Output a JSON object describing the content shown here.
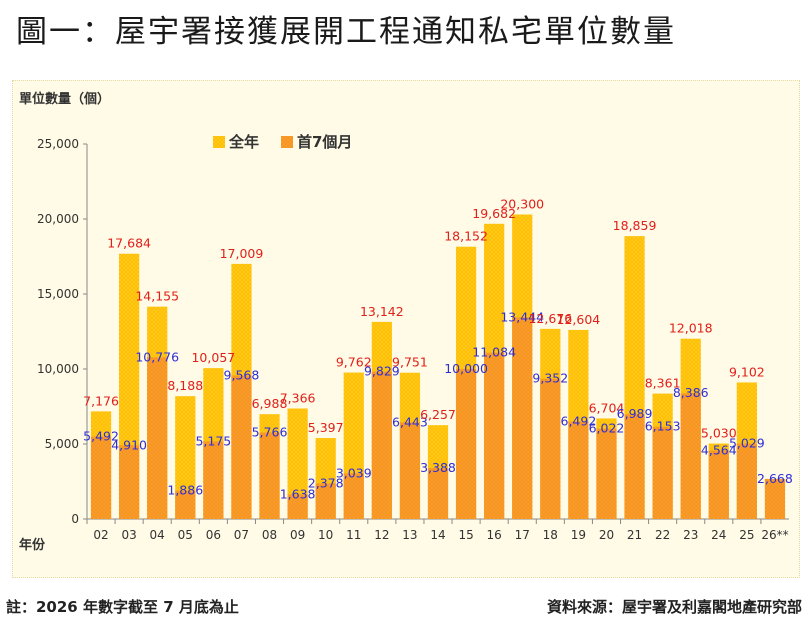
{
  "page_title": "圖一：屋宇署接獲展開工程通知私宅單位數量",
  "footnote": "註：2026 年數字截至 7 月底為止",
  "source": "資料來源：屋宇署及利嘉閣地產研究部",
  "colors": {
    "full_year": "#ffc000",
    "first_7_months": "#f7941d",
    "full_year_label": "#e0201b",
    "first_7_label": "#2e2ed6",
    "axis_text": "#333333"
  },
  "chart_data": {
    "type": "bar",
    "ylabel": "單位數量（個）",
    "xlabel": "年份",
    "ylim": [
      0,
      25000
    ],
    "yticks": [
      "0",
      "5,000",
      "10,000",
      "15,000",
      "20,000",
      "25,000"
    ],
    "ytick_values": [
      0,
      5000,
      10000,
      15000,
      20000,
      25000
    ],
    "legend_position": "top-left",
    "grid": false,
    "categories": [
      "02",
      "03",
      "04",
      "05",
      "06",
      "07",
      "08",
      "09",
      "10",
      "11",
      "12",
      "13",
      "14",
      "15",
      "16",
      "17",
      "18",
      "19",
      "20",
      "21",
      "22",
      "23",
      "24",
      "25",
      "26**"
    ],
    "series": [
      {
        "name": "全年",
        "values": [
          7176,
          17684,
          14155,
          8188,
          10057,
          17009,
          6988,
          7366,
          5397,
          9762,
          13142,
          9751,
          6257,
          18152,
          19682,
          20300,
          12676,
          12604,
          6704,
          18859,
          8361,
          12018,
          5030,
          9102,
          null
        ],
        "labels": [
          "7,176",
          "17,684",
          "14,155",
          "8,188",
          "10,057",
          "17,009",
          "6,988",
          "7,366",
          "5,397",
          "9,762",
          "13,142",
          "9,751",
          "6,257",
          "18,152",
          "19,682",
          "20,300",
          "12,676",
          "12,604",
          "6,704",
          "18,859",
          "8,361",
          "12,018",
          "5,030",
          "9,102",
          ""
        ]
      },
      {
        "name": "首7個月",
        "values": [
          5492,
          4910,
          10776,
          1886,
          5175,
          9568,
          5766,
          1638,
          2378,
          3039,
          9829,
          6443,
          3388,
          10000,
          11084,
          13444,
          9352,
          6492,
          6022,
          6989,
          6153,
          8386,
          4564,
          5029,
          2668
        ],
        "labels": [
          "5,492",
          "4,910",
          "10,776",
          "1,886",
          "5,175",
          "9,568",
          "5,766",
          "1,638",
          "2,378",
          "3,039",
          "9,829",
          "6,443",
          "3,388",
          "10,000",
          "11,084",
          "13,444",
          "9,352",
          "6,492",
          "6,022",
          "6,989",
          "6,153",
          "8,386",
          "4,564",
          "5,029",
          "2,668"
        ]
      }
    ]
  }
}
